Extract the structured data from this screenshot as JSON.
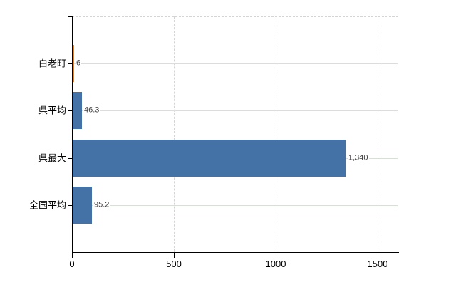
{
  "chart_data": {
    "type": "bar",
    "orientation": "horizontal",
    "title": "",
    "xlabel": "",
    "ylabel": "",
    "categories": [
      "白老町",
      "県平均",
      "県最大",
      "全国平均"
    ],
    "values": [
      6,
      46.3,
      1340,
      95.2
    ],
    "value_labels": [
      "6",
      "46.3",
      "1,340",
      "95.2"
    ],
    "bar_colors": [
      "#e8862f",
      "#4472a7",
      "#4472a7",
      "#4472a7"
    ],
    "xlim": [
      0,
      1600
    ],
    "x_ticks": [
      0,
      500,
      1000,
      1500
    ],
    "x_tick_labels": [
      "0",
      "500",
      "1000",
      "1500"
    ],
    "grid": true,
    "legend": false,
    "colors": {
      "background": "#ffffff",
      "axis": "#000000",
      "tick": "#000000",
      "category_text": "#000000",
      "tick_text": "#000000",
      "value_text": "#3f3f3f",
      "grid_h": "#d9ded9",
      "grid_v": "#d4d4d4",
      "bar_blue": "#4472a7",
      "bar_highlight": "#e8862f"
    }
  }
}
